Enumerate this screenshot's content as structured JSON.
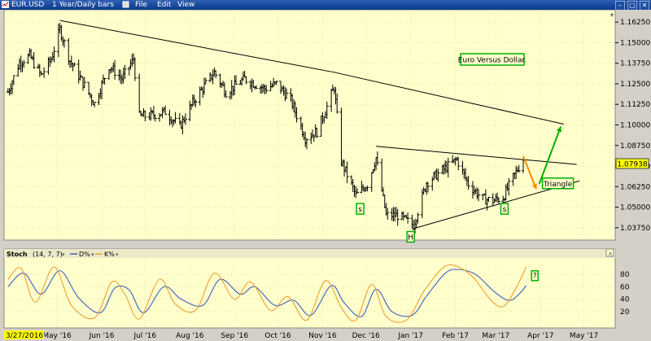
{
  "window": {
    "title": "EUR.USD",
    "subtitle": "1 Year/Daily bars",
    "menu": [
      "File",
      "Edit",
      "View"
    ],
    "controls": [
      "–",
      "▢",
      "✕"
    ]
  },
  "chart_data": [
    {
      "type": "ohlc",
      "title": "Euro Versus Dollar.",
      "ylim": [
        1.03,
        1.17
      ],
      "y_ticks": [
        "1.16250",
        "1.15000",
        "1.13750",
        "1.12500",
        "1.11250",
        "1.10000",
        "1.08750",
        "1.07500",
        "1.06250",
        "1.05000",
        "1.03750"
      ],
      "last_price": "1.07938",
      "x_start_label": "3/27/2016",
      "x_ticks": [
        "May '16",
        "Jun '16",
        "Jul '16",
        "Aug '16",
        "Sep '16",
        "Oct '16",
        "Nov '16",
        "Dec '16",
        "Jan '17",
        "Feb '17",
        "Mar '17",
        "Apr '17",
        "May '17"
      ],
      "close_path": [
        [
          "2016-03-28",
          1.12
        ],
        [
          "2016-04-05",
          1.138
        ],
        [
          "2016-04-12",
          1.142
        ],
        [
          "2016-04-20",
          1.13
        ],
        [
          "2016-04-27",
          1.14
        ],
        [
          "2016-05-03",
          1.158
        ],
        [
          "2016-05-10",
          1.139
        ],
        [
          "2016-05-18",
          1.127
        ],
        [
          "2016-05-27",
          1.113
        ],
        [
          "2016-06-06",
          1.136
        ],
        [
          "2016-06-15",
          1.128
        ],
        [
          "2016-06-23",
          1.14
        ],
        [
          "2016-06-27",
          1.105
        ],
        [
          "2016-07-06",
          1.106
        ],
        [
          "2016-07-15",
          1.108
        ],
        [
          "2016-07-25",
          1.099
        ],
        [
          "2016-08-04",
          1.115
        ],
        [
          "2016-08-18",
          1.132
        ],
        [
          "2016-08-26",
          1.12
        ],
        [
          "2016-09-08",
          1.128
        ],
        [
          "2016-09-22",
          1.122
        ],
        [
          "2016-09-30",
          1.125
        ],
        [
          "2016-10-10",
          1.115
        ],
        [
          "2016-10-20",
          1.092
        ],
        [
          "2016-10-28",
          1.096
        ],
        [
          "2016-11-04",
          1.111
        ],
        [
          "2016-11-09",
          1.123
        ],
        [
          "2016-11-14",
          1.078
        ],
        [
          "2016-11-24",
          1.057
        ],
        [
          "2016-12-02",
          1.064
        ],
        [
          "2016-12-08",
          1.08
        ],
        [
          "2016-12-15",
          1.045
        ],
        [
          "2016-12-23",
          1.045
        ],
        [
          "2017-01-03",
          1.039
        ],
        [
          "2017-01-12",
          1.065
        ],
        [
          "2017-01-24",
          1.073
        ],
        [
          "2017-02-02",
          1.079
        ],
        [
          "2017-02-10",
          1.064
        ],
        [
          "2017-02-20",
          1.055
        ],
        [
          "2017-02-27",
          1.054
        ],
        [
          "2017-03-06",
          1.056
        ],
        [
          "2017-03-13",
          1.068
        ],
        [
          "2017-03-20",
          1.0794
        ]
      ],
      "trendlines": [
        {
          "from": [
            "2016-05-03",
            1.1635
          ],
          "to": [
            "2016-11-09",
            1.132
          ]
        },
        {
          "from": [
            "2016-11-09",
            1.132
          ],
          "to": [
            "2017-04-17",
            1.1005
          ]
        },
        {
          "from": [
            "2016-12-08",
            1.087
          ],
          "to": [
            "2017-04-26",
            1.076
          ]
        },
        {
          "from": [
            "2017-01-03",
            1.037
          ],
          "to": [
            "2017-04-28",
            1.066
          ]
        }
      ],
      "arrows": [
        {
          "color": "#ff8c00",
          "from": [
            "2017-03-20",
            1.081
          ],
          "to": [
            "2017-03-29",
            1.061
          ]
        },
        {
          "color": "#00b000",
          "from": [
            "2017-03-31",
            1.064
          ],
          "to": [
            "2017-04-15",
            1.099
          ]
        }
      ],
      "annotations": [
        {
          "text": "s",
          "at": [
            "2016-11-27",
            1.049
          ]
        },
        {
          "text": "H",
          "at": [
            "2017-01-01",
            1.032
          ]
        },
        {
          "text": "s",
          "at": [
            "2017-03-07",
            1.049
          ]
        },
        {
          "text": "Triangle",
          "at": [
            "2017-04-13",
            1.0645
          ]
        }
      ],
      "colors": {
        "background": "#ffffcc",
        "bars": "#000000",
        "last_price_bg": "#ffff00",
        "box_border": "#00b000"
      }
    },
    {
      "type": "line",
      "title": "Stoch",
      "params": "(14, 7, 7)",
      "ylim": [
        0,
        100
      ],
      "y_ticks": [
        "80",
        "60",
        "40",
        "20"
      ],
      "series": [
        {
          "name": "D%",
          "color": "#4060c0",
          "points": [
            [
              "2016-03-28",
              60
            ],
            [
              "2016-04-08",
              82
            ],
            [
              "2016-04-20",
              48
            ],
            [
              "2016-05-03",
              86
            ],
            [
              "2016-05-16",
              42
            ],
            [
              "2016-05-31",
              18
            ],
            [
              "2016-06-10",
              58
            ],
            [
              "2016-06-20",
              55
            ],
            [
              "2016-06-30",
              18
            ],
            [
              "2016-07-14",
              60
            ],
            [
              "2016-07-26",
              40
            ],
            [
              "2016-08-10",
              30
            ],
            [
              "2016-08-22",
              72
            ],
            [
              "2016-09-05",
              48
            ],
            [
              "2016-09-15",
              60
            ],
            [
              "2016-09-29",
              30
            ],
            [
              "2016-10-12",
              38
            ],
            [
              "2016-10-24",
              14
            ],
            [
              "2016-11-07",
              62
            ],
            [
              "2016-11-16",
              34
            ],
            [
              "2016-11-28",
              12
            ],
            [
              "2016-12-08",
              56
            ],
            [
              "2016-12-19",
              20
            ],
            [
              "2017-01-02",
              14
            ],
            [
              "2017-01-12",
              45
            ],
            [
              "2017-01-25",
              82
            ],
            [
              "2017-02-03",
              88
            ],
            [
              "2017-02-15",
              80
            ],
            [
              "2017-02-28",
              52
            ],
            [
              "2017-03-10",
              38
            ],
            [
              "2017-03-17",
              48
            ],
            [
              "2017-03-22",
              62
            ]
          ]
        },
        {
          "name": "K%",
          "color": "#f0a030",
          "points": [
            [
              "2016-03-28",
              72
            ],
            [
              "2016-04-06",
              90
            ],
            [
              "2016-04-16",
              35
            ],
            [
              "2016-04-29",
              92
            ],
            [
              "2016-05-11",
              30
            ],
            [
              "2016-05-27",
              10
            ],
            [
              "2016-06-08",
              68
            ],
            [
              "2016-06-17",
              48
            ],
            [
              "2016-06-27",
              8
            ],
            [
              "2016-07-11",
              72
            ],
            [
              "2016-07-22",
              32
            ],
            [
              "2016-08-05",
              22
            ],
            [
              "2016-08-18",
              82
            ],
            [
              "2016-09-01",
              40
            ],
            [
              "2016-09-12",
              68
            ],
            [
              "2016-09-26",
              22
            ],
            [
              "2016-10-08",
              44
            ],
            [
              "2016-10-21",
              6
            ],
            [
              "2016-11-03",
              70
            ],
            [
              "2016-11-14",
              26
            ],
            [
              "2016-11-24",
              6
            ],
            [
              "2016-12-05",
              64
            ],
            [
              "2016-12-15",
              12
            ],
            [
              "2016-12-29",
              6
            ],
            [
              "2017-01-10",
              52
            ],
            [
              "2017-01-23",
              90
            ],
            [
              "2017-02-01",
              94
            ],
            [
              "2017-02-13",
              76
            ],
            [
              "2017-02-25",
              40
            ],
            [
              "2017-03-06",
              28
            ],
            [
              "2017-03-15",
              58
            ],
            [
              "2017-03-22",
              92
            ]
          ]
        }
      ],
      "annotations": [
        {
          "text": "?",
          "at": [
            "2017-03-28",
            78
          ]
        }
      ]
    }
  ]
}
